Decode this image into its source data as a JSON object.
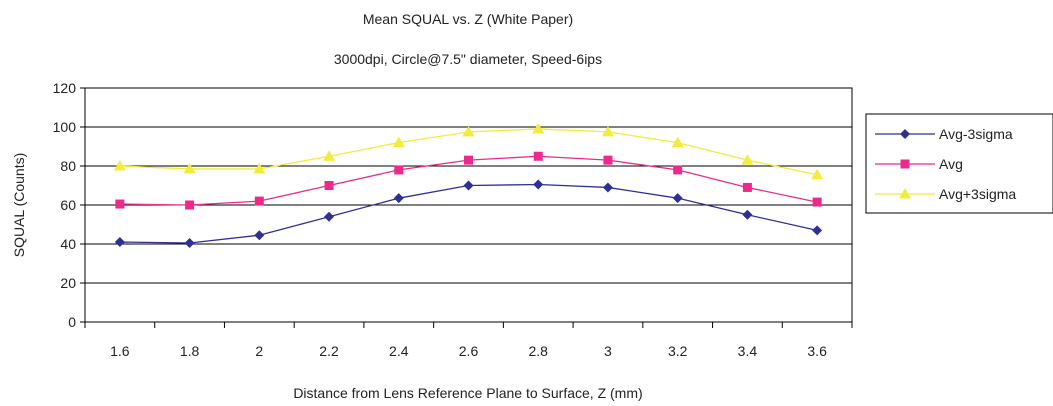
{
  "chart_data": {
    "type": "line",
    "title": "Mean SQUAL vs. Z (White Paper)",
    "subtitle": "3000dpi, Circle@7.5\" diameter, Speed-6ips",
    "xlabel": "Distance from Lens Reference Plane to Surface, Z (mm)",
    "ylabel": "SQUAL (Counts)",
    "categories": [
      "1.6",
      "1.8",
      "2",
      "2.2",
      "2.4",
      "2.6",
      "2.8",
      "3",
      "3.2",
      "3.4",
      "3.6"
    ],
    "y_ticks": [
      "0",
      "20",
      "40",
      "60",
      "80",
      "100",
      "120"
    ],
    "ylim": [
      0,
      120
    ],
    "grid": "horizontal",
    "legend_position": "right",
    "series": [
      {
        "name": "Avg-3sigma",
        "color": "#2E3192",
        "marker": "diamond",
        "values": [
          41,
          40.5,
          44.5,
          54,
          63.5,
          70,
          70.5,
          69,
          63.5,
          55,
          47
        ]
      },
      {
        "name": "Avg",
        "color": "#EC2A8C",
        "marker": "square",
        "values": [
          60.5,
          60,
          62,
          70,
          78,
          83,
          85,
          83,
          78,
          69,
          61.5
        ]
      },
      {
        "name": "Avg+3sigma",
        "color": "#F2EC3C",
        "marker": "triangle",
        "values": [
          80,
          78.5,
          78.5,
          85,
          92,
          97.5,
          99,
          97.5,
          92,
          83,
          75.5
        ]
      }
    ]
  }
}
